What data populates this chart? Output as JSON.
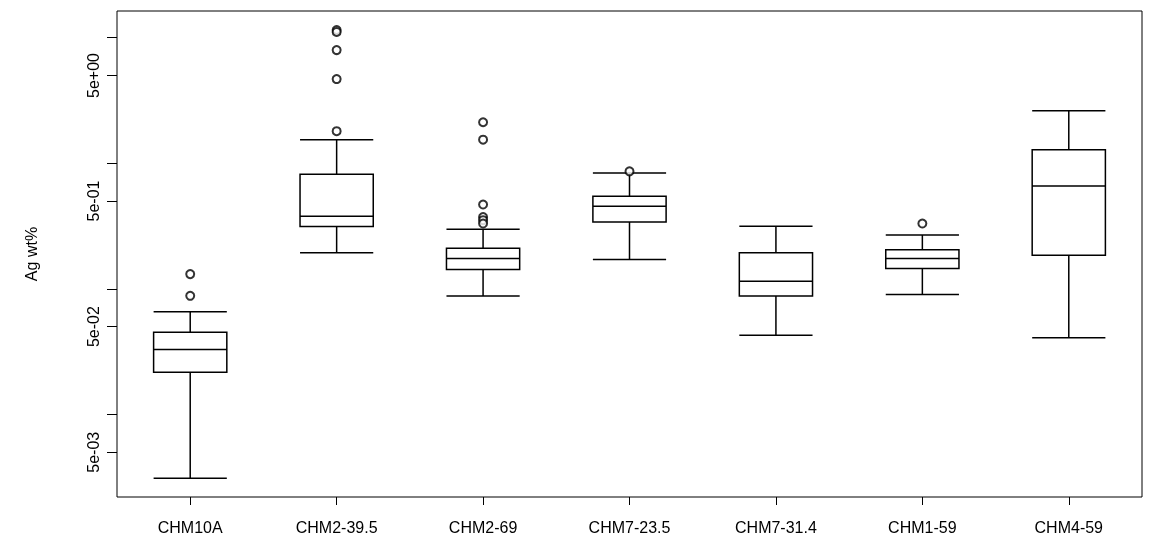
{
  "chart_data": {
    "type": "box",
    "ylabel": "Ag wt%",
    "log": "y",
    "categories": [
      "CHM10A",
      "CHM2-39.5",
      "CHM2-69",
      "CHM7-23.5",
      "CHM7-31.4",
      "CHM1-59",
      "CHM4-59"
    ],
    "ylim": [
      0.0022,
      16.3
    ],
    "yticks": [
      {
        "value": 0.005,
        "label": "5e-03"
      },
      {
        "value": 0.01,
        "label": null
      },
      {
        "value": 0.05,
        "label": "5e-02"
      },
      {
        "value": 0.1,
        "label": null
      },
      {
        "value": 0.5,
        "label": "5e-01"
      },
      {
        "value": 1,
        "label": null
      },
      {
        "value": 5,
        "label": "5e+00"
      },
      {
        "value": 10,
        "label": null
      }
    ],
    "series": [
      {
        "type": "box",
        "color": "#000000",
        "boxes": [
          {
            "low": 0.0031,
            "q1": 0.0217,
            "median": 0.0329,
            "q3": 0.0452,
            "high": 0.0656
          },
          {
            "low": 0.194,
            "q1": 0.313,
            "median": 0.378,
            "q3": 0.816,
            "high": 1.54
          },
          {
            "low": 0.0878,
            "q1": 0.1425,
            "median": 0.174,
            "q3": 0.21,
            "high": 0.298
          },
          {
            "low": 0.171,
            "q1": 0.34,
            "median": 0.454,
            "q3": 0.545,
            "high": 0.836
          },
          {
            "low": 0.0427,
            "q1": 0.0878,
            "median": 0.115,
            "q3": 0.194,
            "high": 0.315
          },
          {
            "low": 0.09,
            "q1": 0.145,
            "median": 0.174,
            "q3": 0.205,
            "high": 0.268
          },
          {
            "low": 0.0407,
            "q1": 0.185,
            "median": 0.659,
            "q3": 1.28,
            "high": 2.62
          }
        ]
      },
      {
        "type": "scatter",
        "color": "#000000",
        "marker": "circle",
        "x": [
          "CHM10A",
          "CHM10A",
          "CHM2-39.5",
          "CHM2-39.5",
          "CHM2-39.5",
          "CHM2-39.5",
          "CHM2-39.5",
          "CHM2-69",
          "CHM2-69",
          "CHM2-69",
          "CHM2-69",
          "CHM2-69",
          "CHM2-69",
          "CHM7-23.5",
          "CHM1-59"
        ],
        "values": [
          0.131,
          0.088,
          11.5,
          11.1,
          7.96,
          4.68,
          1.8,
          2.12,
          1.54,
          0.469,
          0.373,
          0.352,
          0.331,
          0.862,
          0.331
        ]
      }
    ]
  }
}
